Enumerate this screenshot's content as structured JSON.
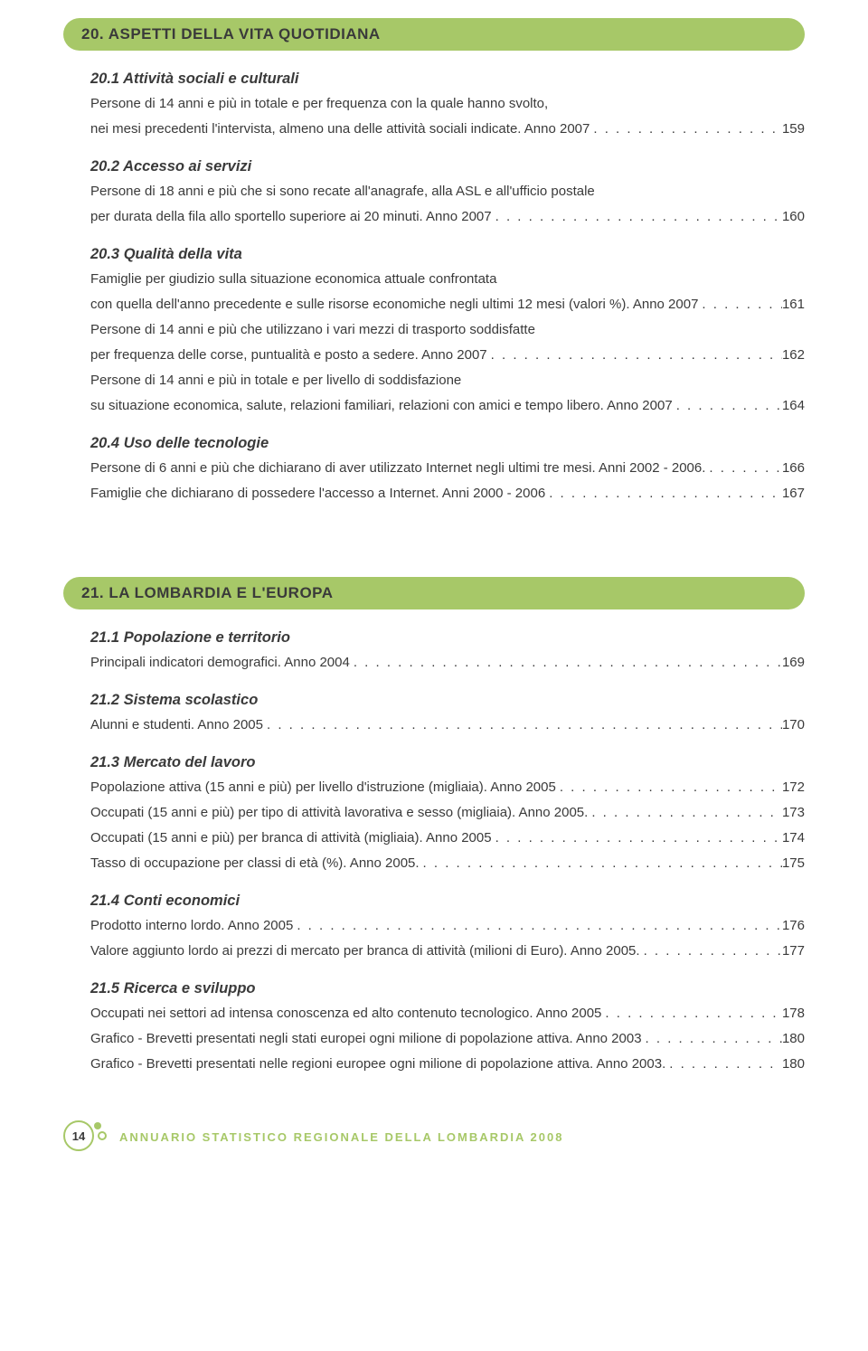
{
  "colors": {
    "header_bg": "#a7c868",
    "text": "#3a3a3a",
    "background": "#ffffff"
  },
  "fonts": {
    "body_size_pt": 11,
    "section_header_size_pt": 13,
    "subsection_title_size_pt": 12,
    "subsection_style": "italic bold"
  },
  "sections": [
    {
      "title": "20. ASPETTI DELLA VITA QUOTIDIANA",
      "subsections": [
        {
          "title": "20.1 Attività sociali e culturali",
          "entries": [
            {
              "lines": [
                "Persone di 14 anni e più in totale e per frequenza con la quale hanno svolto,",
                "nei mesi precedenti l'intervista, almeno una delle attività sociali indicate. Anno 2007"
              ],
              "page": "159"
            }
          ]
        },
        {
          "title": "20.2 Accesso ai servizi",
          "entries": [
            {
              "lines": [
                "Persone di 18 anni e più che si sono recate all'anagrafe, alla ASL e all'ufficio postale",
                "per durata della fila allo sportello superiore ai 20 minuti. Anno 2007"
              ],
              "page": "160"
            }
          ]
        },
        {
          "title": "20.3 Qualità della vita",
          "entries": [
            {
              "lines": [
                "Famiglie per giudizio sulla situazione economica attuale confrontata",
                "con quella dell'anno precedente e sulle risorse economiche negli ultimi 12 mesi (valori %). Anno 2007"
              ],
              "page": "161"
            },
            {
              "lines": [
                "Persone di 14 anni e più che utilizzano i vari mezzi di trasporto soddisfatte",
                "per frequenza delle corse, puntualità e posto a sedere. Anno 2007"
              ],
              "page": "162"
            },
            {
              "lines": [
                "Persone di 14 anni e più in totale e per livello di soddisfazione",
                "su situazione economica, salute, relazioni familiari, relazioni con amici e tempo libero. Anno 2007"
              ],
              "page": "164"
            }
          ]
        },
        {
          "title": "20.4 Uso delle tecnologie",
          "entries": [
            {
              "lines": [
                "Persone di 6 anni e più che dichiarano di aver utilizzato Internet negli ultimi tre mesi. Anni 2002 - 2006."
              ],
              "page": "166"
            },
            {
              "lines": [
                "Famiglie che dichiarano di possedere l'accesso a Internet. Anni 2000 - 2006"
              ],
              "page": "167"
            }
          ]
        }
      ]
    },
    {
      "title": "21. LA LOMBARDIA E L'EUROPA",
      "subsections": [
        {
          "title": "21.1 Popolazione e territorio",
          "entries": [
            {
              "lines": [
                "Principali indicatori demografici. Anno 2004"
              ],
              "page": "169"
            }
          ]
        },
        {
          "title": "21.2 Sistema scolastico",
          "entries": [
            {
              "lines": [
                "Alunni e studenti. Anno 2005"
              ],
              "page": "170"
            }
          ]
        },
        {
          "title": "21.3 Mercato del lavoro",
          "entries": [
            {
              "lines": [
                "Popolazione attiva (15 anni e più) per livello d'istruzione (migliaia). Anno 2005"
              ],
              "page": "172"
            },
            {
              "lines": [
                "Occupati (15 anni e più) per tipo di attività lavorativa e sesso (migliaia). Anno 2005."
              ],
              "page": "173"
            },
            {
              "lines": [
                "Occupati (15 anni e più) per branca di attività (migliaia). Anno 2005"
              ],
              "page": "174"
            },
            {
              "lines": [
                "Tasso di occupazione per classi di età (%). Anno 2005."
              ],
              "page": "175"
            }
          ]
        },
        {
          "title": "21.4 Conti economici",
          "entries": [
            {
              "lines": [
                "Prodotto interno lordo. Anno 2005"
              ],
              "page": "176"
            },
            {
              "lines": [
                "Valore aggiunto lordo ai prezzi di mercato per branca di attività (milioni di Euro). Anno 2005."
              ],
              "page": "177"
            }
          ]
        },
        {
          "title": "21.5 Ricerca e sviluppo",
          "entries": [
            {
              "lines": [
                "Occupati nei settori ad intensa conoscenza ed alto contenuto tecnologico. Anno 2005"
              ],
              "page": "178"
            },
            {
              "lines": [
                "Grafico - Brevetti presentati negli stati europei ogni milione di popolazione attiva. Anno 2003"
              ],
              "page": "180"
            },
            {
              "lines": [
                "Grafico - Brevetti presentati nelle regioni europee ogni milione di popolazione attiva. Anno 2003."
              ],
              "page": "180"
            }
          ]
        }
      ]
    }
  ],
  "footer": {
    "page_number": "14",
    "text": "ANNUARIO STATISTICO REGIONALE DELLA LOMBARDIA 2008"
  }
}
